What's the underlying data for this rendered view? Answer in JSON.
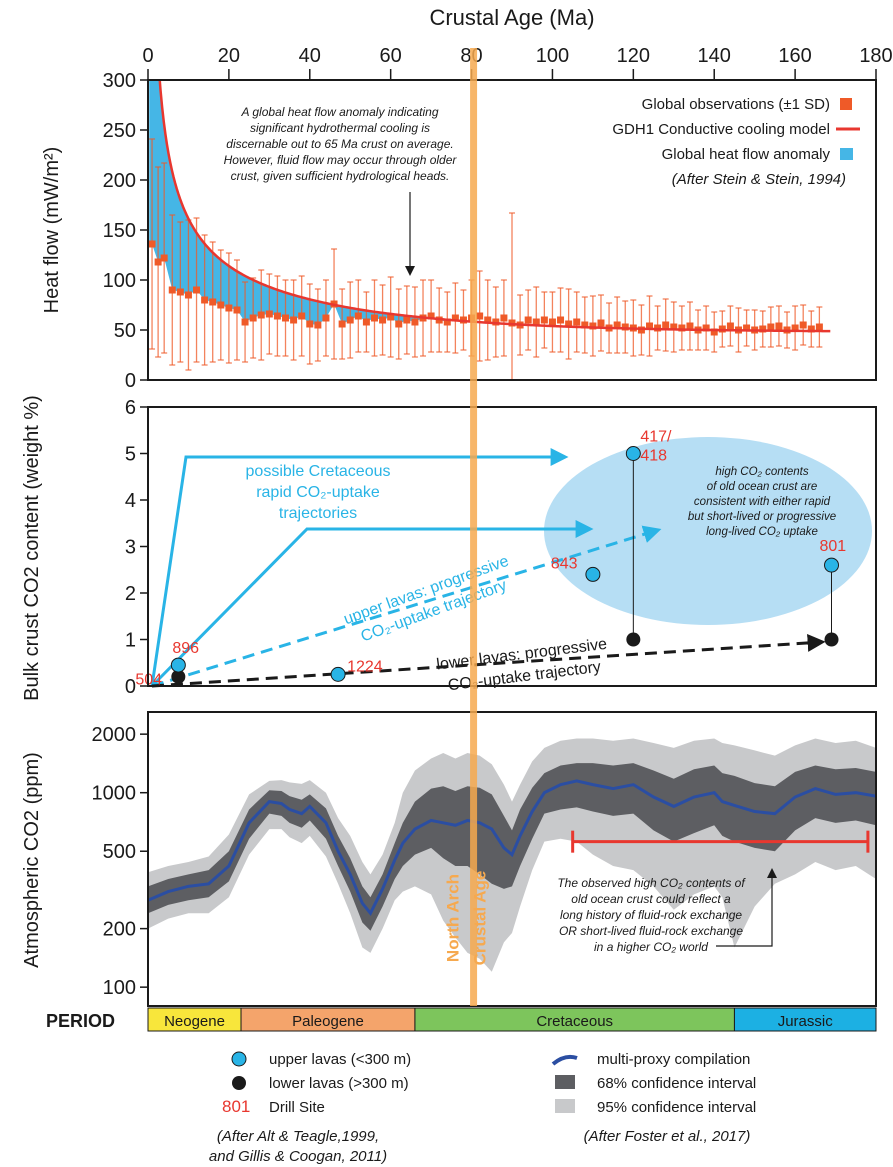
{
  "colors": {
    "observation": "#ef5a28",
    "model": "#e8372f",
    "anomaly": "#45b6e6",
    "upper_lava": "#29b4e6",
    "lower_lava": "#1a1a1a",
    "drill_label": "#e8372f",
    "trajectory": "#29b4e6",
    "ellipse": "#b6def4",
    "proxy": "#2b4ea2",
    "ci68": "#5d5e62",
    "ci95": "#c8c9cb",
    "north_arch": "#f6a94f",
    "neogene": "#f8e63b",
    "paleogene": "#f4a46b",
    "cretaceous": "#7dc55c",
    "jurassic": "#1cb0e3"
  },
  "x_axis": {
    "title": "Crustal Age (Ma)",
    "ticks": [
      "0",
      "20",
      "40",
      "60",
      "80",
      "100",
      "120",
      "140",
      "160",
      "180"
    ]
  },
  "north_arch": {
    "label_1": "North Arch",
    "label_2": "Crustal Age",
    "age": 80.5
  },
  "chart_data": [
    {
      "type": "scatter",
      "panel": "heat-flow",
      "ylabel": "Heat flow (mW/m²)",
      "xlim": [
        0,
        180
      ],
      "ylim": [
        0,
        300
      ],
      "yticks": [
        "0",
        "50",
        "100",
        "150",
        "200",
        "250",
        "300"
      ],
      "legend": {
        "placement": "top-right",
        "entries": [
          "Global observations (±1 SD)",
          "GDH1 Conductive cooling model",
          "Global heat flow anomaly"
        ],
        "citation": "(After Stein & Stein, 1994)"
      },
      "annotation": [
        "A global heat flow anomaly indicating",
        "significant hydrothermal cooling is",
        "discernable out to 65 Ma crust on average.",
        "However, fluid flow may occur through older",
        "crust, given sufficient hydrological heads."
      ],
      "series": [
        {
          "name": "Global observations (±1 SD)",
          "x": [
            1,
            2.5,
            4,
            6,
            8,
            10,
            12,
            14,
            16,
            18,
            20,
            22,
            24,
            26,
            28,
            30,
            32,
            34,
            36,
            38,
            40,
            42,
            44,
            46,
            48,
            50,
            52,
            54,
            56,
            58,
            60,
            62,
            64,
            66,
            68,
            70,
            72,
            74,
            76,
            78,
            80,
            82,
            84,
            86,
            88,
            90,
            92,
            94,
            96,
            98,
            100,
            102,
            104,
            106,
            108,
            110,
            112,
            114,
            116,
            118,
            120,
            122,
            124,
            126,
            128,
            130,
            132,
            134,
            136,
            138,
            140,
            142,
            144,
            146,
            148,
            150,
            152,
            154,
            156,
            158,
            160,
            162,
            164,
            166
          ],
          "y": [
            136,
            118,
            122,
            90,
            88,
            85,
            90,
            80,
            78,
            75,
            72,
            70,
            58,
            62,
            65,
            66,
            64,
            62,
            60,
            64,
            56,
            55,
            62,
            76,
            56,
            60,
            64,
            58,
            62,
            60,
            63,
            56,
            60,
            58,
            62,
            64,
            60,
            58,
            62,
            60,
            62,
            64,
            60,
            58,
            62,
            57,
            55,
            60,
            58,
            60,
            58,
            60,
            56,
            58,
            55,
            54,
            57,
            52,
            55,
            53,
            52,
            50,
            54,
            52,
            55,
            53,
            52,
            54,
            50,
            52,
            48,
            51,
            54,
            50,
            52,
            50,
            51,
            53,
            54,
            50,
            52,
            55,
            51,
            53
          ],
          "sd": [
            105,
            95,
            95,
            75,
            70,
            75,
            72,
            65,
            60,
            55,
            55,
            50,
            40,
            40,
            45,
            40,
            40,
            38,
            40,
            40,
            40,
            36,
            38,
            55,
            35,
            38,
            36,
            30,
            38,
            35,
            40,
            35,
            34,
            35,
            38,
            36,
            32,
            30,
            35,
            30,
            38,
            45,
            40,
            35,
            38,
            110,
            30,
            30,
            35,
            28,
            30,
            32,
            35,
            30,
            28,
            30,
            28,
            25,
            28,
            26,
            28,
            25,
            30,
            22,
            26,
            25,
            22,
            24,
            20,
            22,
            20,
            18,
            20,
            22,
            18,
            20,
            18,
            20,
            20,
            18,
            22,
            20,
            18,
            20
          ]
        },
        {
          "name": "GDH1 Conductive cooling model",
          "formula": "q = 510/sqrt(t) for t <= 55 Ma; q = 48 + 96*exp(-0.0278*t) for t > 55 Ma"
        },
        {
          "name": "Global heat flow anomaly",
          "note": "area between the model curve and the observations"
        }
      ]
    },
    {
      "type": "scatter",
      "panel": "bulk-crust-co2",
      "ylabel": "Bulk crust CO2 content (weight %)",
      "xlim": [
        0,
        180
      ],
      "ylim": [
        0,
        6
      ],
      "yticks": [
        "0",
        "1",
        "2",
        "3",
        "4",
        "5",
        "6"
      ],
      "series": [
        {
          "name": "upper lavas (<300 m)",
          "x": [
            7.5,
            47,
            110,
            120,
            169
          ],
          "y": [
            0.45,
            0.25,
            2.4,
            5.0,
            2.6
          ]
        },
        {
          "name": "lower lavas (>300 m)",
          "x": [
            7.5,
            120,
            169
          ],
          "y": [
            0.2,
            1.0,
            1.0
          ]
        }
      ],
      "drill_sites": [
        {
          "label": "896",
          "x": 7.5,
          "y": 0.45
        },
        {
          "label": "504",
          "x": 7.5,
          "y": 0.2
        },
        {
          "label": "1224",
          "x": 47,
          "y": 0.25
        },
        {
          "label": "843",
          "x": 110,
          "y": 2.4
        },
        {
          "label": "417/",
          "label_2": "418",
          "x": 120,
          "y": 5.0
        },
        {
          "label": "801",
          "x": 169,
          "y": 2.6
        }
      ],
      "trajectories": {
        "rapid_label": [
          "possible Cretaceous",
          "rapid CO₂-uptake",
          "trajectories"
        ],
        "upper_label": [
          "upper lavas: progressive",
          "CO₂-uptake trajectory"
        ],
        "lower_label": [
          "lower lavas: progressive",
          "CO₂-uptake trajectory"
        ]
      },
      "ellipse_note": [
        "high CO₂ contents",
        "of old ocean crust are",
        "consistent with either rapid",
        "but short-lived or progressive",
        "long-lived CO₂ uptake"
      ]
    },
    {
      "type": "area",
      "panel": "atmospheric-co2",
      "ylabel": "Atmospheric CO2 (ppm)",
      "xlim": [
        0,
        180
      ],
      "yscale": "log",
      "ylim": [
        80,
        2600
      ],
      "yticks": [
        "100",
        "200",
        "500",
        "1000",
        "2000"
      ],
      "x": [
        0,
        5,
        10,
        15,
        20,
        25,
        30,
        33,
        35,
        38,
        40,
        44,
        47,
        50,
        53,
        55,
        58,
        61,
        63,
        66,
        70,
        73,
        76,
        79,
        82,
        85,
        88,
        90,
        92,
        95,
        98,
        102,
        106,
        110,
        115,
        120,
        125,
        130,
        135,
        140,
        142,
        145,
        150,
        155,
        160,
        165,
        170,
        175,
        180
      ],
      "series": [
        {
          "name": "multi-proxy compilation",
          "y": [
            280,
            310,
            330,
            340,
            420,
            700,
            900,
            880,
            820,
            780,
            850,
            700,
            500,
            380,
            270,
            240,
            320,
            450,
            550,
            650,
            720,
            700,
            680,
            720,
            700,
            650,
            520,
            480,
            600,
            800,
            1000,
            1100,
            1150,
            1100,
            1050,
            1100,
            950,
            850,
            950,
            1000,
            900,
            860,
            800,
            780,
            950,
            1050,
            980,
            1000,
            960
          ]
        },
        {
          "name": "68% confidence interval",
          "lower": [
            240,
            265,
            280,
            290,
            350,
            580,
            780,
            760,
            700,
            660,
            720,
            580,
            420,
            310,
            215,
            195,
            260,
            360,
            420,
            480,
            520,
            460,
            420,
            420,
            380,
            340,
            320,
            330,
            420,
            580,
            780,
            820,
            840,
            800,
            760,
            780,
            640,
            560,
            620,
            680,
            600,
            560,
            520,
            500,
            640,
            740,
            700,
            720,
            680
          ],
          "upper": [
            330,
            360,
            380,
            400,
            500,
            820,
            1030,
            1020,
            960,
            920,
            980,
            830,
            600,
            460,
            330,
            290,
            380,
            550,
            700,
            900,
            1050,
            1080,
            1020,
            1080,
            1060,
            980,
            760,
            640,
            820,
            1060,
            1260,
            1380,
            1420,
            1420,
            1380,
            1420,
            1300,
            1180,
            1320,
            1380,
            1260,
            1220,
            1120,
            1080,
            1280,
            1380,
            1320,
            1340,
            1280
          ]
        },
        {
          "name": "95% confidence interval",
          "lower": [
            200,
            225,
            240,
            240,
            290,
            480,
            650,
            650,
            590,
            550,
            600,
            470,
            340,
            240,
            160,
            150,
            200,
            280,
            310,
            330,
            300,
            220,
            180,
            150,
            140,
            120,
            170,
            190,
            260,
            400,
            560,
            580,
            560,
            480,
            420,
            400,
            330,
            250,
            300,
            330,
            290,
            160,
            260,
            340,
            380,
            440,
            400,
            420,
            360
          ],
          "upper": [
            390,
            420,
            440,
            470,
            610,
            980,
            1150,
            1160,
            1130,
            1110,
            1160,
            1000,
            740,
            600,
            440,
            380,
            480,
            700,
            1000,
            1300,
            1500,
            1600,
            1500,
            1600,
            1550,
            1400,
            1100,
            900,
            1100,
            1450,
            1700,
            1850,
            1900,
            1900,
            1850,
            1900,
            1800,
            1700,
            1850,
            1900,
            1800,
            1750,
            1650,
            1550,
            1750,
            1900,
            1800,
            1850,
            1700
          ]
        }
      ],
      "annotation": [
        "The observed high CO₂ contents of",
        "old ocean crust could reflect a",
        "long history of fluid-rock exchange",
        "OR short-lived fluid-rock exchange",
        "in a higher CO₂ world"
      ],
      "range_bar": {
        "x_start": 105,
        "x_end": 178,
        "y": 560
      }
    }
  ],
  "period_bar": {
    "label": "PERIOD",
    "periods": [
      {
        "name": "Neogene",
        "start": 0,
        "end": 23
      },
      {
        "name": "Paleogene",
        "start": 23,
        "end": 66
      },
      {
        "name": "Cretaceous",
        "start": 66,
        "end": 145
      },
      {
        "name": "Jurassic",
        "start": 145,
        "end": 180
      }
    ]
  },
  "legend_left": {
    "upper": "upper lavas (<300 m)",
    "lower": "lower lavas (>300 m)",
    "drill_number": "801",
    "drill_label": "Drill Site",
    "citation_1": "(After Alt & Teagle,1999,",
    "citation_2": "and Gillis & Coogan, 2011)"
  },
  "legend_right": {
    "proxy": "multi-proxy compilation",
    "ci68": "68% confidence interval",
    "ci95": "95% confidence interval",
    "citation": "(After Foster et al., 2017)"
  }
}
